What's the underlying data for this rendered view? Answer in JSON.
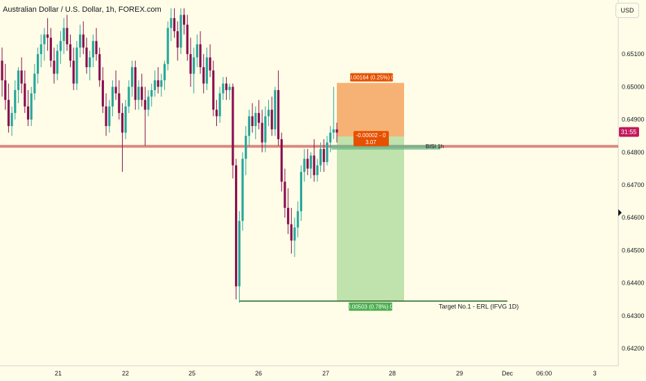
{
  "header": {
    "symbol_title": "Australian Dollar / U.S. Dollar, 1h, FOREX.com",
    "currency": "USD"
  },
  "price_axis": {
    "ticks": [
      "0.65100",
      "0.65000",
      "0.64900",
      "0.64800",
      "0.64700",
      "0.64600",
      "0.64500",
      "0.64400",
      "0.64300",
      "0.64200"
    ],
    "countdown": "31:55"
  },
  "time_axis": {
    "ticks": [
      "21",
      "22",
      "25",
      "26",
      "27",
      "28",
      "29",
      "Dec",
      "06:00",
      "3"
    ]
  },
  "position_tool": {
    "target_label": "0.00503 (0.78%) 0",
    "stop_label": "0.00164 (0.25%) 0",
    "entry_label_line1": "-0.00002 - 0",
    "entry_label_line2": "3.07"
  },
  "annotations": {
    "bisi_label": "BISI 1h",
    "target_label": "Target No.1 - ERL (IFVG 1D)"
  },
  "colors": {
    "background": "#fffde7",
    "bull_candle": "#26a69a",
    "bear_candle": "#880e4f",
    "target_zone": "#b9dfa5",
    "stop_zone": "#f4a460",
    "horizontal_level": "#d98880",
    "bisi_zone": "#66bb8a",
    "profit_badge": "#4caf50",
    "loss_badge": "#e65100",
    "countdown_badge": "#c2185b"
  },
  "chart_data": {
    "type": "candlestick",
    "title": "Australian Dollar / U.S. Dollar, 1h, FOREX.com",
    "ylabel": "USD",
    "ylim": [
      0.6416,
      0.6524
    ],
    "y_ticks": [
      0.651,
      0.65,
      0.649,
      0.648,
      0.647,
      0.646,
      0.645,
      0.644,
      0.643,
      0.642
    ],
    "x_ticks": [
      "21",
      "22",
      "25",
      "26",
      "27",
      "28",
      "29",
      "Dec",
      "06:00",
      "3"
    ],
    "last_price": 0.64862,
    "horizontal_level": 0.64818,
    "bisi_zone": [
      0.64808,
      0.64822
    ],
    "target_level": 0.64345,
    "position": {
      "entry": 0.64848,
      "target": 0.64345,
      "stop": 0.65012,
      "target_change": 0.00503,
      "target_percent": 0.78,
      "stop_change": 0.00164,
      "stop_percent": 0.25,
      "open_pnl": -2e-05,
      "risk_reward": 3.07
    },
    "candles": [
      [
        0.6508,
        0.6512,
        0.6497,
        0.6502
      ],
      [
        0.6502,
        0.6507,
        0.6493,
        0.6496
      ],
      [
        0.6496,
        0.6501,
        0.6486,
        0.6488
      ],
      [
        0.6488,
        0.6494,
        0.6485,
        0.6492
      ],
      [
        0.6492,
        0.6502,
        0.649,
        0.6499
      ],
      [
        0.6499,
        0.6506,
        0.6495,
        0.6505
      ],
      [
        0.6505,
        0.6509,
        0.6498,
        0.6501
      ],
      [
        0.6501,
        0.6505,
        0.6492,
        0.6494
      ],
      [
        0.6494,
        0.6499,
        0.6488,
        0.649
      ],
      [
        0.649,
        0.65,
        0.6488,
        0.6498
      ],
      [
        0.6498,
        0.6507,
        0.6496,
        0.6504
      ],
      [
        0.6504,
        0.6512,
        0.6501,
        0.651
      ],
      [
        0.651,
        0.6516,
        0.6506,
        0.6513
      ],
      [
        0.6513,
        0.6518,
        0.6508,
        0.6516
      ],
      [
        0.6516,
        0.6521,
        0.6511,
        0.6515
      ],
      [
        0.6515,
        0.6518,
        0.6506,
        0.6508
      ],
      [
        0.6508,
        0.6512,
        0.6501,
        0.6504
      ],
      [
        0.6504,
        0.6513,
        0.6502,
        0.6511
      ],
      [
        0.6511,
        0.6517,
        0.6507,
        0.6514
      ],
      [
        0.6514,
        0.6521,
        0.651,
        0.6518
      ],
      [
        0.6518,
        0.6522,
        0.6511,
        0.6513
      ],
      [
        0.6513,
        0.6516,
        0.6506,
        0.6508
      ],
      [
        0.6508,
        0.6512,
        0.6499,
        0.6501
      ],
      [
        0.6501,
        0.6514,
        0.6499,
        0.6512
      ],
      [
        0.6512,
        0.6519,
        0.6509,
        0.6516
      ],
      [
        0.6516,
        0.652,
        0.651,
        0.6512
      ],
      [
        0.6512,
        0.6515,
        0.6504,
        0.6506
      ],
      [
        0.6506,
        0.6511,
        0.6502,
        0.6509
      ],
      [
        0.6509,
        0.6516,
        0.6506,
        0.6514
      ],
      [
        0.6514,
        0.6518,
        0.6508,
        0.651
      ],
      [
        0.651,
        0.6512,
        0.65,
        0.6502
      ],
      [
        0.6502,
        0.6506,
        0.6492,
        0.6494
      ],
      [
        0.6494,
        0.6498,
        0.6485,
        0.6488
      ],
      [
        0.6488,
        0.6496,
        0.6486,
        0.6494
      ],
      [
        0.6494,
        0.6502,
        0.6491,
        0.65
      ],
      [
        0.65,
        0.6505,
        0.6496,
        0.6498
      ],
      [
        0.6498,
        0.6502,
        0.649,
        0.6492
      ],
      [
        0.6492,
        0.6495,
        0.6474,
        0.6486
      ],
      [
        0.6486,
        0.6496,
        0.6484,
        0.6494
      ],
      [
        0.6494,
        0.6502,
        0.6492,
        0.65
      ],
      [
        0.65,
        0.6508,
        0.6497,
        0.6506
      ],
      [
        0.6506,
        0.6508,
        0.6493,
        0.6496
      ],
      [
        0.6496,
        0.6502,
        0.6493,
        0.65
      ],
      [
        0.65,
        0.6504,
        0.6494,
        0.6496
      ],
      [
        0.6496,
        0.65,
        0.6482,
        0.6493
      ],
      [
        0.6493,
        0.6499,
        0.6491,
        0.6497
      ],
      [
        0.6497,
        0.6501,
        0.6494,
        0.6499
      ],
      [
        0.6499,
        0.6505,
        0.6497,
        0.6502
      ],
      [
        0.6502,
        0.6506,
        0.6498,
        0.65
      ],
      [
        0.65,
        0.6504,
        0.6497,
        0.6502
      ],
      [
        0.6502,
        0.6508,
        0.6499,
        0.6507
      ],
      [
        0.6507,
        0.652,
        0.6505,
        0.6518
      ],
      [
        0.6518,
        0.6524,
        0.6514,
        0.6521
      ],
      [
        0.6521,
        0.6524,
        0.6515,
        0.6517
      ],
      [
        0.6517,
        0.652,
        0.6508,
        0.6512
      ],
      [
        0.6512,
        0.6524,
        0.651,
        0.6522
      ],
      [
        0.6522,
        0.6524,
        0.6516,
        0.6519
      ],
      [
        0.6519,
        0.6522,
        0.6508,
        0.651
      ],
      [
        0.651,
        0.6515,
        0.65,
        0.6504
      ],
      [
        0.6504,
        0.6512,
        0.6498,
        0.6509
      ],
      [
        0.6509,
        0.6516,
        0.6506,
        0.6513
      ],
      [
        0.6513,
        0.6517,
        0.6504,
        0.6506
      ],
      [
        0.6506,
        0.651,
        0.6498,
        0.6501
      ],
      [
        0.6501,
        0.6512,
        0.6499,
        0.6509
      ],
      [
        0.6509,
        0.6513,
        0.6503,
        0.6505
      ],
      [
        0.6505,
        0.6508,
        0.6491,
        0.6493
      ],
      [
        0.6493,
        0.6496,
        0.6488,
        0.6491
      ],
      [
        0.6491,
        0.65,
        0.6489,
        0.6498
      ],
      [
        0.6498,
        0.6503,
        0.6496,
        0.6501
      ],
      [
        0.6501,
        0.6503,
        0.6496,
        0.6499
      ],
      [
        0.6499,
        0.6501,
        0.6496,
        0.65
      ],
      [
        0.65,
        0.6501,
        0.6472,
        0.6476
      ],
      [
        0.6476,
        0.6478,
        0.6435,
        0.6439
      ],
      [
        0.6439,
        0.6462,
        0.6434,
        0.6459
      ],
      [
        0.6459,
        0.648,
        0.6456,
        0.6478
      ],
      [
        0.6478,
        0.6488,
        0.6473,
        0.6485
      ],
      [
        0.6485,
        0.6493,
        0.6482,
        0.6491
      ],
      [
        0.6491,
        0.6495,
        0.6486,
        0.6488
      ],
      [
        0.6488,
        0.6494,
        0.6484,
        0.6492
      ],
      [
        0.6492,
        0.6496,
        0.6487,
        0.6489
      ],
      [
        0.6489,
        0.6493,
        0.648,
        0.6483
      ],
      [
        0.6483,
        0.6494,
        0.648,
        0.6491
      ],
      [
        0.6491,
        0.6496,
        0.6488,
        0.6493
      ],
      [
        0.6493,
        0.6497,
        0.6485,
        0.6487
      ],
      [
        0.6487,
        0.65,
        0.6485,
        0.6499
      ],
      [
        0.6499,
        0.6505,
        0.6482,
        0.6484
      ],
      [
        0.6484,
        0.6486,
        0.6468,
        0.6471
      ],
      [
        0.6471,
        0.6475,
        0.646,
        0.6463
      ],
      [
        0.6463,
        0.6469,
        0.6455,
        0.6458
      ],
      [
        0.6458,
        0.6463,
        0.6449,
        0.6453
      ],
      [
        0.6453,
        0.646,
        0.6448,
        0.6457
      ],
      [
        0.6457,
        0.6465,
        0.6454,
        0.6462
      ],
      [
        0.6462,
        0.6476,
        0.6459,
        0.6474
      ],
      [
        0.6474,
        0.6481,
        0.6471,
        0.6478
      ],
      [
        0.6478,
        0.6481,
        0.6473,
        0.6475
      ],
      [
        0.6475,
        0.648,
        0.6472,
        0.6479
      ],
      [
        0.6479,
        0.6484,
        0.6471,
        0.6473
      ],
      [
        0.6473,
        0.6478,
        0.6471,
        0.6476
      ],
      [
        0.6476,
        0.6483,
        0.6474,
        0.6481
      ],
      [
        0.6481,
        0.6484,
        0.6474,
        0.6477
      ],
      [
        0.6477,
        0.6485,
        0.6476,
        0.6483
      ],
      [
        0.6483,
        0.6488,
        0.648,
        0.6486
      ],
      [
        0.6486,
        0.65,
        0.6484,
        0.6487
      ],
      [
        0.6487,
        0.6489,
        0.6483,
        0.6486
      ]
    ]
  }
}
